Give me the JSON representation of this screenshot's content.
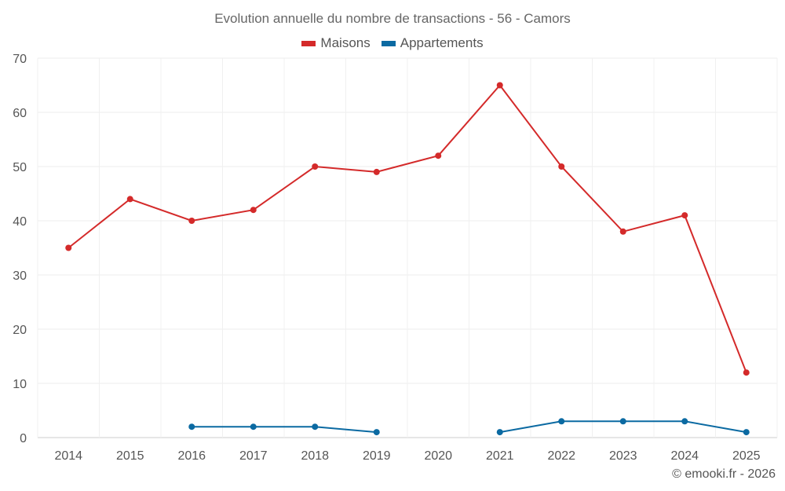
{
  "chart_data": {
    "type": "line",
    "title": "Evolution annuelle du nombre de transactions - 56 - Camors",
    "xlabel": "",
    "ylabel": "",
    "ylim": [
      0,
      70
    ],
    "yticks": [
      0,
      10,
      20,
      30,
      40,
      50,
      60,
      70
    ],
    "grid": true,
    "legend": "top-center",
    "categories": [
      "2014",
      "2015",
      "2016",
      "2017",
      "2018",
      "2019",
      "2020",
      "2021",
      "2022",
      "2023",
      "2024",
      "2025"
    ],
    "series": [
      {
        "name": "Maisons",
        "color": "#d42a2a",
        "values": [
          35,
          44,
          40,
          42,
          50,
          49,
          52,
          65,
          50,
          38,
          41,
          12
        ]
      },
      {
        "name": "Appartements",
        "color": "#0b6aa2",
        "values": [
          null,
          null,
          2,
          2,
          2,
          1,
          null,
          1,
          3,
          3,
          3,
          1
        ]
      }
    ]
  },
  "credit": "© emooki.fr - 2026"
}
